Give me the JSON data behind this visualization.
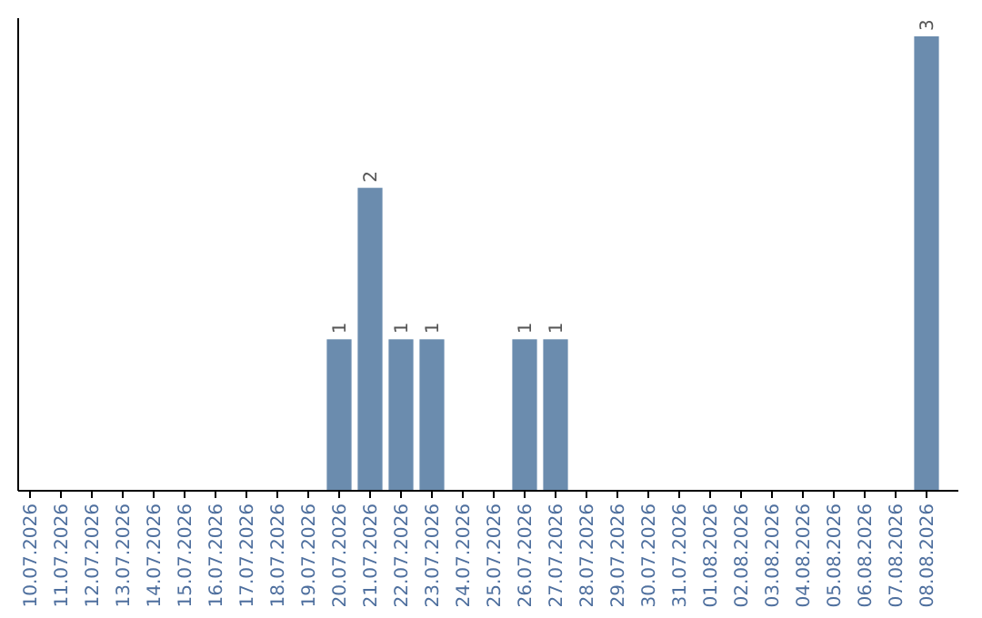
{
  "chart_data": {
    "type": "bar",
    "categories": [
      "10.07.2026",
      "11.07.2026",
      "12.07.2026",
      "13.07.2026",
      "14.07.2026",
      "15.07.2026",
      "16.07.2026",
      "17.07.2026",
      "18.07.2026",
      "19.07.2026",
      "20.07.2026",
      "21.07.2026",
      "22.07.2026",
      "23.07.2026",
      "24.07.2026",
      "25.07.2026",
      "26.07.2026",
      "27.07.2026",
      "28.07.2026",
      "29.07.2026",
      "30.07.2026",
      "31.07.2026",
      "01.08.2026",
      "02.08.2026",
      "03.08.2026",
      "04.08.2026",
      "05.08.2026",
      "06.08.2026",
      "07.08.2026",
      "08.08.2026"
    ],
    "values": [
      0,
      0,
      0,
      0,
      0,
      0,
      0,
      0,
      0,
      0,
      1,
      2,
      1,
      1,
      0,
      0,
      1,
      1,
      0,
      0,
      0,
      0,
      0,
      0,
      0,
      0,
      0,
      0,
      0,
      3
    ],
    "value_labels": [
      null,
      null,
      null,
      null,
      null,
      null,
      null,
      null,
      null,
      null,
      "1",
      "2",
      "1",
      "1",
      null,
      null,
      "1",
      "1",
      null,
      null,
      null,
      null,
      null,
      null,
      null,
      null,
      null,
      null,
      null,
      "3"
    ],
    "color": "#6b8cae"
  }
}
